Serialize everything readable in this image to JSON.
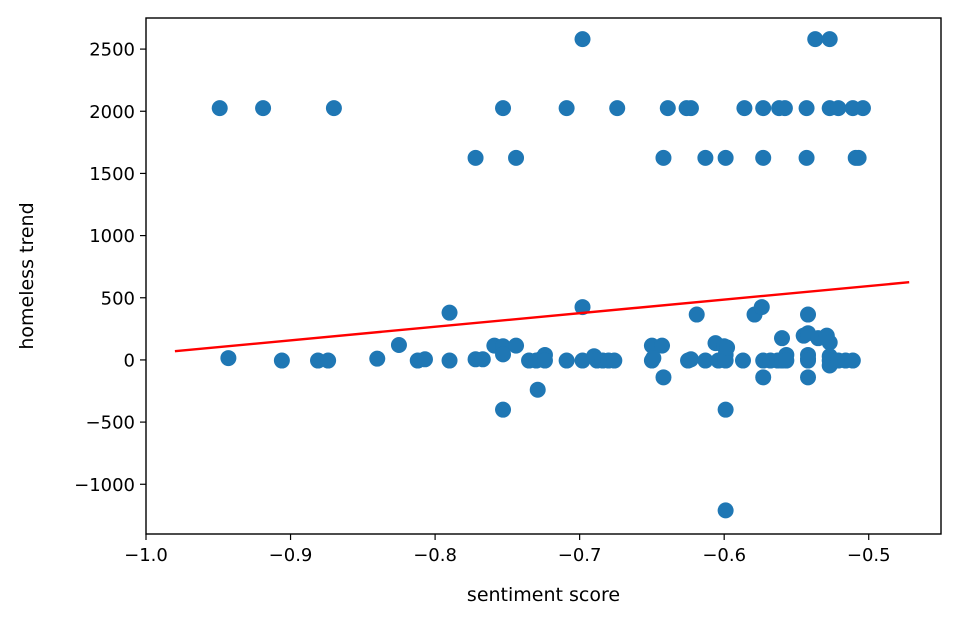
{
  "chart_data": {
    "type": "scatter",
    "title": "",
    "xlabel": "sentiment score",
    "ylabel": "homeless trend",
    "xlim": [
      -1.0,
      -0.45
    ],
    "ylim": [
      -1400,
      2750
    ],
    "x_ticks": [
      -1.0,
      -0.9,
      -0.8,
      -0.7,
      -0.6,
      -0.5
    ],
    "x_tick_labels": [
      "−1.0",
      "−0.9",
      "−0.8",
      "−0.7",
      "−0.6",
      "−0.5"
    ],
    "y_ticks": [
      -1000,
      -500,
      0,
      500,
      1000,
      1500,
      2000,
      2500
    ],
    "y_tick_labels": [
      "−1000",
      "−500",
      "0",
      "500",
      "1000",
      "1500",
      "2000",
      "2500"
    ],
    "grid": false,
    "colors": {
      "points": "#1f77b4",
      "fit_line": "#ff0000"
    },
    "fit_line": {
      "x": [
        -0.98,
        -0.472
      ],
      "y": [
        70,
        625
      ]
    },
    "points": [
      [
        -0.949,
        2025
      ],
      [
        -0.919,
        2025
      ],
      [
        -0.87,
        2025
      ],
      [
        -0.943,
        15
      ],
      [
        -0.906,
        -5
      ],
      [
        -0.881,
        -5
      ],
      [
        -0.874,
        -5
      ],
      [
        -0.84,
        10
      ],
      [
        -0.825,
        120
      ],
      [
        -0.812,
        -5
      ],
      [
        -0.807,
        5
      ],
      [
        -0.79,
        380
      ],
      [
        -0.79,
        -5
      ],
      [
        -0.772,
        1625
      ],
      [
        -0.772,
        5
      ],
      [
        -0.767,
        5
      ],
      [
        -0.759,
        115
      ],
      [
        -0.753,
        2025
      ],
      [
        -0.753,
        110
      ],
      [
        -0.753,
        45
      ],
      [
        -0.753,
        -400
      ],
      [
        -0.744,
        1625
      ],
      [
        -0.744,
        115
      ],
      [
        -0.735,
        -5
      ],
      [
        -0.73,
        -5
      ],
      [
        -0.729,
        -240
      ],
      [
        -0.727,
        5
      ],
      [
        -0.724,
        40
      ],
      [
        -0.724,
        -5
      ],
      [
        -0.709,
        2025
      ],
      [
        -0.709,
        -5
      ],
      [
        -0.698,
        2580
      ],
      [
        -0.698,
        425
      ],
      [
        -0.698,
        -5
      ],
      [
        -0.69,
        30
      ],
      [
        -0.688,
        -5
      ],
      [
        -0.684,
        -5
      ],
      [
        -0.68,
        -5
      ],
      [
        -0.676,
        -5
      ],
      [
        -0.674,
        2025
      ],
      [
        -0.65,
        115
      ],
      [
        -0.65,
        -5
      ],
      [
        -0.649,
        15
      ],
      [
        -0.643,
        115
      ],
      [
        -0.642,
        -140
      ],
      [
        -0.642,
        1625
      ],
      [
        -0.639,
        2025
      ],
      [
        -0.626,
        2025
      ],
      [
        -0.623,
        2025
      ],
      [
        -0.625,
        -5
      ],
      [
        -0.623,
        5
      ],
      [
        -0.619,
        365
      ],
      [
        -0.613,
        1625
      ],
      [
        -0.613,
        -5
      ],
      [
        -0.606,
        135
      ],
      [
        -0.604,
        -5
      ],
      [
        -0.6,
        110
      ],
      [
        -0.599,
        1625
      ],
      [
        -0.599,
        40
      ],
      [
        -0.599,
        -5
      ],
      [
        -0.599,
        -400
      ],
      [
        -0.599,
        -1210
      ],
      [
        -0.598,
        100
      ],
      [
        -0.586,
        2025
      ],
      [
        -0.587,
        -5
      ],
      [
        -0.579,
        365
      ],
      [
        -0.574,
        425
      ],
      [
        -0.573,
        2025
      ],
      [
        -0.573,
        1625
      ],
      [
        -0.573,
        -5
      ],
      [
        -0.573,
        -140
      ],
      [
        -0.568,
        -5
      ],
      [
        -0.563,
        -5
      ],
      [
        -0.562,
        2025
      ],
      [
        -0.558,
        2025
      ],
      [
        -0.56,
        175
      ],
      [
        -0.56,
        -5
      ],
      [
        -0.557,
        40
      ],
      [
        -0.557,
        -5
      ],
      [
        -0.545,
        195
      ],
      [
        -0.543,
        2025
      ],
      [
        -0.543,
        1625
      ],
      [
        -0.542,
        365
      ],
      [
        -0.542,
        215
      ],
      [
        -0.542,
        40
      ],
      [
        -0.542,
        10
      ],
      [
        -0.542,
        -5
      ],
      [
        -0.542,
        -140
      ],
      [
        -0.537,
        2580
      ],
      [
        -0.535,
        175
      ],
      [
        -0.529,
        195
      ],
      [
        -0.527,
        2580
      ],
      [
        -0.527,
        2025
      ],
      [
        -0.527,
        140
      ],
      [
        -0.527,
        30
      ],
      [
        -0.527,
        -5
      ],
      [
        -0.527,
        -45
      ],
      [
        -0.521,
        2025
      ],
      [
        -0.521,
        -5
      ],
      [
        -0.516,
        -5
      ],
      [
        -0.511,
        -5
      ],
      [
        -0.511,
        2025
      ],
      [
        -0.509,
        1625
      ],
      [
        -0.507,
        1625
      ],
      [
        -0.504,
        2025
      ]
    ]
  }
}
